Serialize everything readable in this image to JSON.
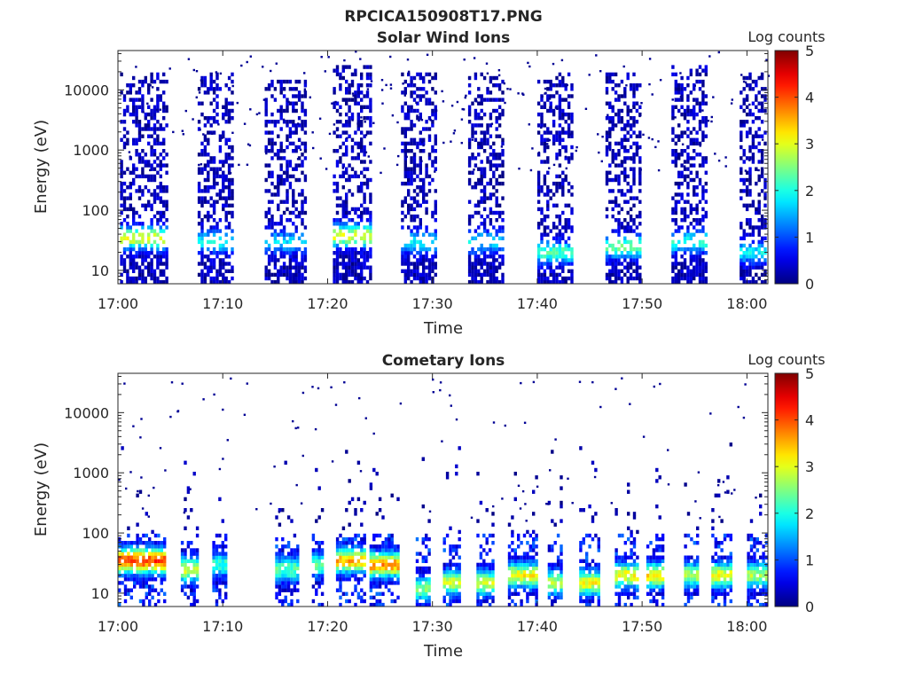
{
  "figure": {
    "title": "RPCICA150908T17.PNG"
  },
  "chart_data": [
    {
      "type": "heatmap",
      "title": "Solar Wind Ions",
      "xlabel": "Time",
      "ylabel": "Energy (eV)",
      "x_ticks": [
        "17:00",
        "17:10",
        "17:20",
        "17:30",
        "17:40",
        "17:50",
        "18:00"
      ],
      "x_range_minutes": [
        0,
        62
      ],
      "y_scale": "log",
      "y_ticks": [
        {
          "value": 10,
          "label": "10"
        },
        {
          "value": 100,
          "label": "100"
        },
        {
          "value": 1000,
          "label": "1000"
        },
        {
          "value": 10000,
          "label": "10000"
        }
      ],
      "ylim": [
        6,
        45000
      ],
      "colorbar": {
        "label": "Log counts",
        "range": [
          0,
          5
        ],
        "ticks": [
          "0",
          "1",
          "2",
          "3",
          "4",
          "5"
        ],
        "colormap": "jet"
      },
      "bursts": [
        {
          "start": 0.2,
          "end": 4.6,
          "ymax": 20000,
          "peak": 2.8,
          "peak_energy": 35
        },
        {
          "start": 7.6,
          "end": 11.0,
          "ymax": 20000,
          "peak": 1.6,
          "peak_energy": 30
        },
        {
          "start": 14.0,
          "end": 17.8,
          "ymax": 15000,
          "peak": 1.5,
          "peak_energy": 30
        },
        {
          "start": 20.5,
          "end": 24.2,
          "ymax": 25000,
          "peak": 2.8,
          "peak_energy": 38
        },
        {
          "start": 27.0,
          "end": 30.4,
          "ymax": 20000,
          "peak": 1.6,
          "peak_energy": 30
        },
        {
          "start": 33.4,
          "end": 36.8,
          "ymax": 20000,
          "peak": 1.5,
          "peak_energy": 30
        },
        {
          "start": 40.0,
          "end": 43.2,
          "ymax": 20000,
          "peak": 2.0,
          "peak_energy": 20
        },
        {
          "start": 46.5,
          "end": 49.8,
          "ymax": 20000,
          "peak": 2.2,
          "peak_energy": 25
        },
        {
          "start": 52.8,
          "end": 56.2,
          "ymax": 25000,
          "peak": 1.8,
          "peak_energy": 30
        },
        {
          "start": 59.3,
          "end": 61.8,
          "ymax": 20000,
          "peak": 1.6,
          "peak_energy": 20
        }
      ]
    },
    {
      "type": "heatmap",
      "title": "Cometary Ions",
      "xlabel": "Time",
      "ylabel": "Energy (eV)",
      "x_ticks": [
        "17:00",
        "17:10",
        "17:20",
        "17:30",
        "17:40",
        "17:50",
        "18:00"
      ],
      "x_range_minutes": [
        0,
        62
      ],
      "y_scale": "log",
      "y_ticks": [
        {
          "value": 10,
          "label": "10"
        },
        {
          "value": 100,
          "label": "100"
        },
        {
          "value": 1000,
          "label": "1000"
        },
        {
          "value": 10000,
          "label": "10000"
        }
      ],
      "ylim": [
        6,
        45000
      ],
      "colorbar": {
        "label": "Log counts",
        "range": [
          0,
          5
        ],
        "ticks": [
          "0",
          "1",
          "2",
          "3",
          "4",
          "5"
        ],
        "colormap": "jet"
      },
      "bursts": [
        {
          "start": 0.0,
          "end": 4.4,
          "peak": 3.8,
          "peak_energy": 35
        },
        {
          "start": 6.0,
          "end": 7.6,
          "peak": 2.6,
          "peak_energy": 25
        },
        {
          "start": 9.0,
          "end": 10.2,
          "peak": 1.8,
          "peak_energy": 30
        },
        {
          "start": 15.0,
          "end": 17.2,
          "peak": 2.0,
          "peak_energy": 25
        },
        {
          "start": 18.5,
          "end": 19.6,
          "peak": 2.0,
          "peak_energy": 30
        },
        {
          "start": 20.8,
          "end": 23.6,
          "peak": 3.2,
          "peak_energy": 35
        },
        {
          "start": 24.0,
          "end": 26.6,
          "peak": 3.4,
          "peak_energy": 30
        },
        {
          "start": 28.4,
          "end": 29.6,
          "peak": 2.2,
          "peak_energy": 12
        },
        {
          "start": 31.0,
          "end": 32.6,
          "peak": 2.6,
          "peak_energy": 15
        },
        {
          "start": 34.2,
          "end": 35.8,
          "peak": 2.6,
          "peak_energy": 15
        },
        {
          "start": 37.2,
          "end": 39.8,
          "peak": 2.8,
          "peak_energy": 20
        },
        {
          "start": 41.0,
          "end": 42.2,
          "peak": 2.4,
          "peak_energy": 15
        },
        {
          "start": 44.0,
          "end": 46.0,
          "peak": 2.8,
          "peak_energy": 15
        },
        {
          "start": 47.4,
          "end": 49.6,
          "peak": 2.8,
          "peak_energy": 20
        },
        {
          "start": 50.4,
          "end": 52.0,
          "peak": 3.0,
          "peak_energy": 20
        },
        {
          "start": 54.0,
          "end": 55.4,
          "peak": 2.4,
          "peak_energy": 20
        },
        {
          "start": 56.6,
          "end": 58.6,
          "peak": 2.8,
          "peak_energy": 20
        },
        {
          "start": 60.0,
          "end": 61.8,
          "peak": 2.4,
          "peak_energy": 20
        }
      ]
    }
  ]
}
